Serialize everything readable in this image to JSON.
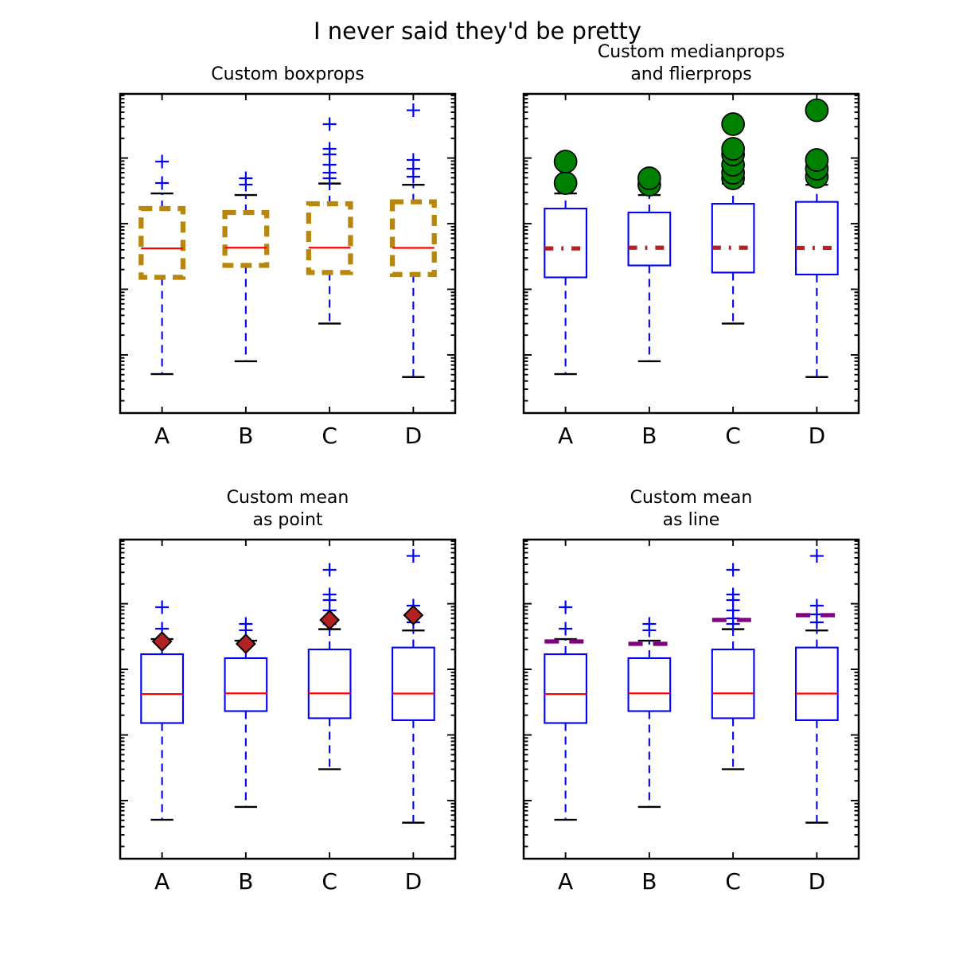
{
  "figure": {
    "suptitle": "I never said they'd be pretty",
    "background": "#ffffff"
  },
  "axes": {
    "yscale": "log",
    "ylim": [
      0.013,
      950
    ],
    "y_tick_labels": [],
    "x_tick_labels": [
      "A",
      "B",
      "C",
      "D"
    ]
  },
  "chart_data": {
    "type": "boxplot",
    "title": "I never said they'd be pretty",
    "yscale": "log",
    "ylim": [
      0.013,
      950
    ],
    "categories": [
      "A",
      "B",
      "C",
      "D"
    ],
    "series": [
      {
        "label": "A",
        "whislo": 0.051,
        "q1": 1.52,
        "median": 4.2,
        "q3": 17.0,
        "whishi": 28.9,
        "mean": 26.6,
        "fliers": [
          41.6,
          88.5
        ]
      },
      {
        "label": "B",
        "whislo": 0.08,
        "q1": 2.31,
        "median": 4.3,
        "q3": 14.8,
        "whishi": 27.3,
        "mean": 24.5,
        "fliers": [
          39.4,
          49.2
        ]
      },
      {
        "label": "C",
        "whislo": 0.3,
        "q1": 1.8,
        "median": 4.3,
        "q3": 20.1,
        "whishi": 40.9,
        "mean": 56.6,
        "fliers": [
          49.2,
          59.8,
          79.1,
          113.7,
          138.3,
          328.7
        ]
      },
      {
        "label": "D",
        "whislo": 0.046,
        "q1": 1.68,
        "median": 4.27,
        "q3": 21.5,
        "whishi": 39.2,
        "mean": 66.9,
        "fliers": [
          52.0,
          68.8,
          93.5,
          535.0
        ]
      }
    ]
  },
  "shared_style": {
    "whisker_color": "#0000ff",
    "whisker_linestyle": "dashed",
    "cap_color": "#000000",
    "axis_color": "#000000",
    "flier_plus_color": "#0000ff"
  },
  "subplots": [
    {
      "id": "custom-boxprops",
      "title": "Custom boxprops",
      "box": {
        "color": "#b8860b",
        "linestyle": "dashed",
        "linewidth": 3
      },
      "median": {
        "color": "#ff0000",
        "linestyle": "solid",
        "linewidth": 1
      },
      "fliers": {
        "marker": "plus",
        "color": "#0000ff"
      },
      "mean": {
        "show": "none"
      }
    },
    {
      "id": "custom-medianprops-and-flierprops",
      "title": "Custom medianprops\nand flierprops",
      "box": {
        "color": "#0000ff",
        "linestyle": "solid",
        "linewidth": 1
      },
      "median": {
        "color": "#b22222",
        "linestyle": "dashdot",
        "linewidth": 2.5
      },
      "fliers": {
        "marker": "circle",
        "face": "#008000",
        "edge": "#000000",
        "size": 12
      },
      "mean": {
        "show": "none"
      }
    },
    {
      "id": "custom-mean-as-point",
      "title": "Custom mean\nas point",
      "box": {
        "color": "#0000ff",
        "linestyle": "solid",
        "linewidth": 1
      },
      "median": {
        "color": "#ff0000",
        "linestyle": "solid",
        "linewidth": 1
      },
      "fliers": {
        "marker": "plus",
        "color": "#0000ff"
      },
      "mean": {
        "show": "point",
        "marker": "D",
        "face": "#b22222",
        "edge": "#000000"
      }
    },
    {
      "id": "custom-mean-as-line",
      "title": "Custom mean\nas line",
      "box": {
        "color": "#0000ff",
        "linestyle": "solid",
        "linewidth": 1
      },
      "median": {
        "color": "#ff0000",
        "linestyle": "solid",
        "linewidth": 1
      },
      "fliers": {
        "marker": "plus",
        "color": "#0000ff"
      },
      "mean": {
        "show": "line",
        "color": "#800080",
        "linestyle": "dashed",
        "linewidth": 2.5
      }
    }
  ]
}
